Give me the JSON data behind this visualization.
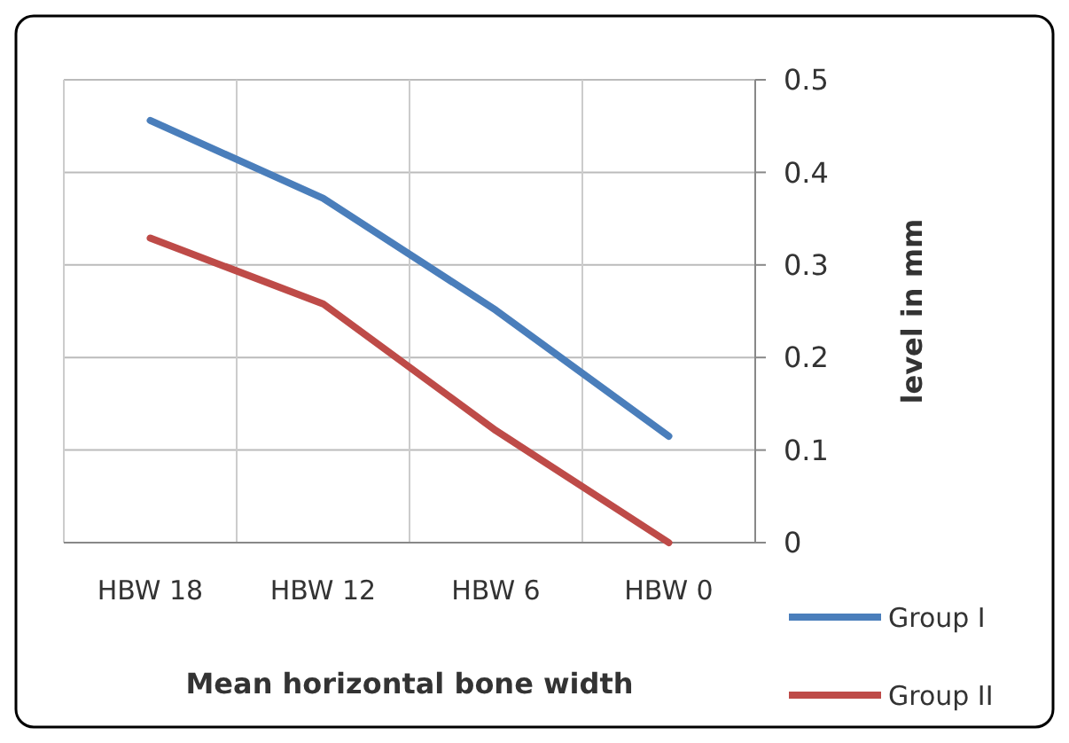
{
  "chart_data": {
    "type": "line",
    "xlabel": "Mean horizontal bone width",
    "ylabel": "level in mm",
    "categories": [
      "HBW 18",
      "HBW 12",
      "HBW 6",
      "HBW 0"
    ],
    "series": [
      {
        "name": "Group I",
        "color": "#4a7ebb",
        "values": [
          0.456,
          0.372,
          0.251,
          0.115
        ]
      },
      {
        "name": "Group II",
        "color": "#be4b48",
        "values": [
          0.329,
          0.258,
          0.121,
          0
        ]
      }
    ],
    "ylim": [
      0,
      0.5
    ],
    "yticks": [
      0,
      0.1,
      0.2,
      0.3,
      0.4,
      0.5
    ],
    "grid": true,
    "legend": "bottom right",
    "marker": "none",
    "line_style": "solid"
  }
}
